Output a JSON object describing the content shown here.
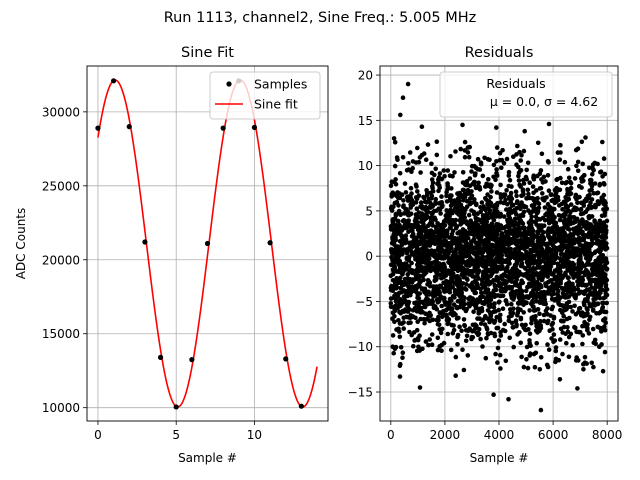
{
  "figure": {
    "suptitle": "Run 1113, channel2, Sine Freq.: 5.005 MHz"
  },
  "chart_data": [
    {
      "type": "line",
      "title": "Sine Fit",
      "xlabel": "Sample #",
      "ylabel": "ADC Counts",
      "xlim": [
        -0.7,
        14.7
      ],
      "ylim": [
        9100,
        33100
      ],
      "xticks": [
        0,
        5,
        10
      ],
      "yticks": [
        10000,
        15000,
        20000,
        25000,
        30000
      ],
      "grid": true,
      "legend_position": "top-right",
      "series": [
        {
          "name": "Samples",
          "kind": "scatter",
          "color": "#000000",
          "x": [
            0,
            1,
            2,
            3,
            4,
            5,
            6,
            7,
            8,
            9,
            10,
            11,
            12,
            13
          ],
          "y": [
            28900,
            32100,
            29000,
            21200,
            13400,
            10050,
            13250,
            21100,
            28900,
            32100,
            28950,
            21150,
            13300,
            10100
          ]
        },
        {
          "name": "Sine fit",
          "kind": "line",
          "color": "#ff0000",
          "model": {
            "offset": 21100,
            "amplitude": 11050,
            "period_samples": 7.992,
            "peak_at_sample": 1.1
          },
          "x_range": [
            0,
            14
          ]
        }
      ]
    },
    {
      "type": "scatter",
      "title": "Residuals",
      "xlabel": "Sample #",
      "ylabel": "",
      "xlim": [
        -400,
        8400
      ],
      "ylim": [
        -18.2,
        21
      ],
      "xticks": [
        0,
        2000,
        4000,
        6000,
        8000
      ],
      "yticks": [
        -15,
        -10,
        -5,
        0,
        5,
        10,
        15,
        20
      ],
      "grid": true,
      "legend_position": "top-right",
      "series": [
        {
          "name": "Residuals",
          "color": "#000000",
          "n_points": 8000,
          "mu": 0.0,
          "sigma": 4.62,
          "outliers": [
            [
              640,
              19.0
            ],
            [
              450,
              17.5
            ],
            [
              350,
              15.6
            ],
            [
              1150,
              14.3
            ],
            [
              2650,
              14.5
            ],
            [
              3900,
              14.2
            ],
            [
              5850,
              14.6
            ],
            [
              4950,
              13.8
            ],
            [
              7200,
              13.1
            ],
            [
              120,
              13.0
            ],
            [
              5550,
              -17.0
            ],
            [
              4350,
              -15.8
            ],
            [
              1080,
              -14.5
            ],
            [
              3800,
              -15.3
            ],
            [
              6900,
              -14.6
            ],
            [
              340,
              -13.3
            ],
            [
              2400,
              -13.2
            ],
            [
              6250,
              -13.6
            ],
            [
              7850,
              -12.7
            ],
            [
              4050,
              -12.4
            ]
          ]
        }
      ],
      "legend_entries": [
        "Residuals",
        "μ = 0.0, σ = 4.62"
      ]
    }
  ]
}
